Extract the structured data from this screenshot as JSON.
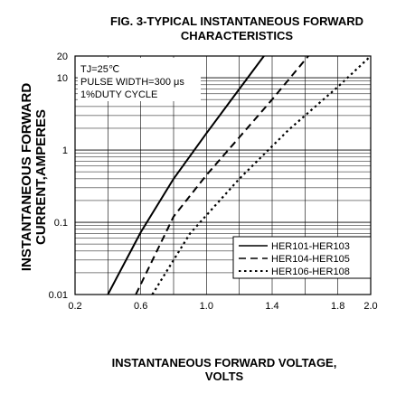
{
  "chart_data": {
    "type": "line",
    "title_lines": [
      "FIG. 3-TYPICAL INSTANTANEOUS FORWARD",
      "CHARACTERISTICS"
    ],
    "xlabel_lines": [
      "INSTANTANEOUS FORWARD VOLTAGE,",
      "VOLTS"
    ],
    "ylabel_lines": [
      "INSTANTANEOUS FORWARD",
      "CURRENT,AMPERES"
    ],
    "x_scale": "linear",
    "y_scale": "log",
    "xlim": [
      0.2,
      2.0
    ],
    "ylim": [
      0.01,
      20
    ],
    "x_ticks": [
      0.2,
      0.6,
      1.0,
      1.4,
      1.8,
      2.0
    ],
    "x_tick_labels": [
      "0.2",
      "0.6",
      "1.0",
      "1.4",
      "1.8",
      "2.0"
    ],
    "y_tick_values": [
      0.01,
      0.1,
      1,
      10,
      20
    ],
    "y_tick_labels": [
      "0.01",
      "0.1",
      "1",
      "10",
      "20"
    ],
    "grid": true,
    "conditions": [
      "TJ=25℃",
      "PULSE WIDTH=300 μs",
      "1%DUTY CYCLE"
    ],
    "legend_position": "bottom-right",
    "series": [
      {
        "name": "HER101-HER103",
        "dash": "solid",
        "x": [
          0.4,
          0.6,
          0.8,
          1.0,
          1.2,
          1.35
        ],
        "y": [
          0.01,
          0.073,
          0.4,
          1.7,
          7,
          20
        ]
      },
      {
        "name": "HER104-HER105",
        "dash": "dashed",
        "x": [
          0.57,
          0.8,
          1.0,
          1.2,
          1.4,
          1.62
        ],
        "y": [
          0.01,
          0.12,
          0.45,
          1.5,
          5,
          20
        ]
      },
      {
        "name": "HER106-HER108",
        "dash": "dotted",
        "x": [
          0.67,
          0.9,
          1.2,
          1.5,
          1.8,
          2.0
        ],
        "y": [
          0.01,
          0.07,
          0.4,
          1.9,
          7.5,
          20
        ]
      }
    ]
  }
}
